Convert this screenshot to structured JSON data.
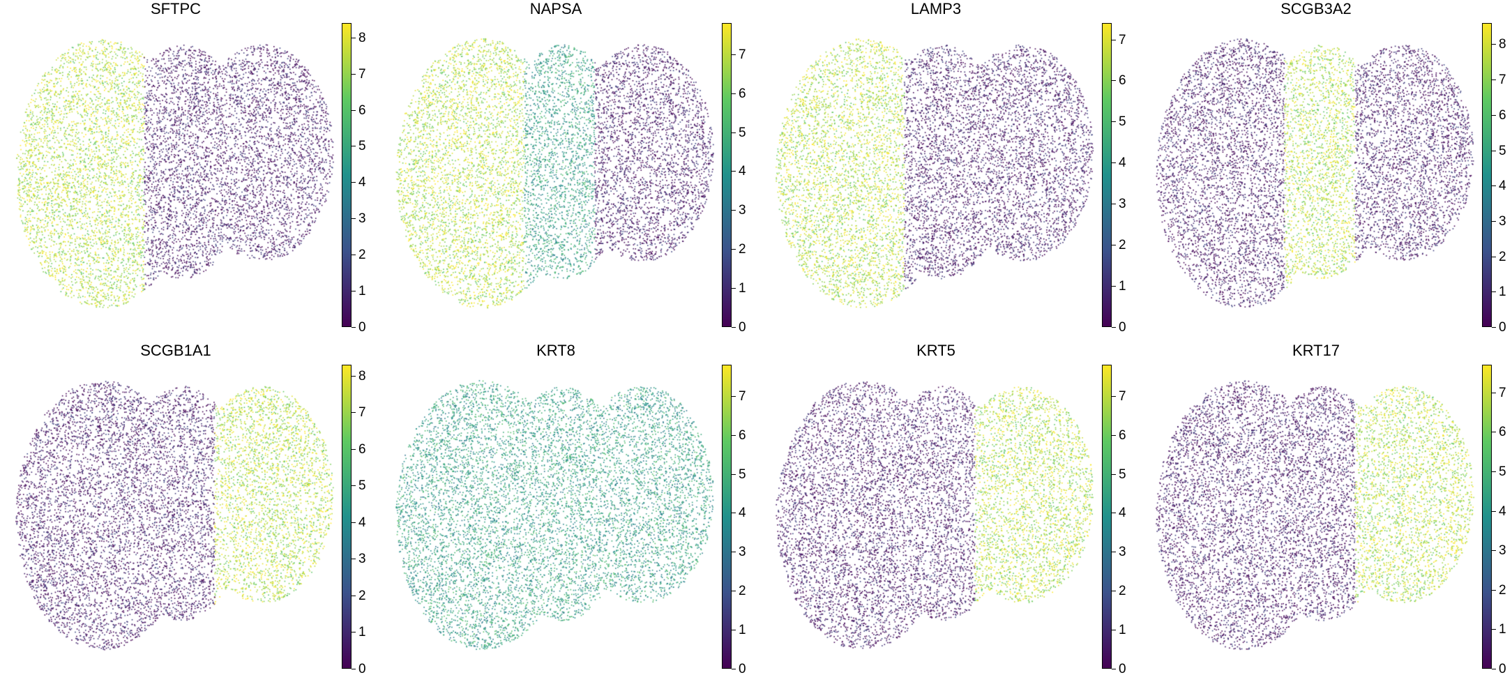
{
  "colormap": [
    "#440154",
    "#3b528b",
    "#21918c",
    "#5ec962",
    "#fde725"
  ],
  "chart_data": [
    {
      "type": "scatter",
      "title": "SFTPC",
      "xlabel": "",
      "ylabel": "",
      "colorbar": {
        "min": 0,
        "max": 8.4,
        "ticks": [
          "0",
          "1",
          "2",
          "3",
          "4",
          "5",
          "6",
          "7",
          "8"
        ]
      },
      "expression_regions": [
        "left: high",
        "middle: low",
        "right: low"
      ]
    },
    {
      "type": "scatter",
      "title": "NAPSA",
      "xlabel": "",
      "ylabel": "",
      "colorbar": {
        "min": 0,
        "max": 7.8,
        "ticks": [
          "0",
          "1",
          "2",
          "3",
          "4",
          "5",
          "6",
          "7"
        ]
      },
      "expression_regions": [
        "left: high",
        "middle: medium",
        "right: low"
      ]
    },
    {
      "type": "scatter",
      "title": "LAMP3",
      "xlabel": "",
      "ylabel": "",
      "colorbar": {
        "min": 0,
        "max": 7.4,
        "ticks": [
          "0",
          "1",
          "2",
          "3",
          "4",
          "5",
          "6",
          "7"
        ]
      },
      "expression_regions": [
        "left: high",
        "middle: low",
        "right: low"
      ]
    },
    {
      "type": "scatter",
      "title": "SCGB3A2",
      "xlabel": "",
      "ylabel": "",
      "colorbar": {
        "min": 0,
        "max": 8.6,
        "ticks": [
          "0",
          "1",
          "2",
          "3",
          "4",
          "5",
          "6",
          "7",
          "8"
        ]
      },
      "expression_regions": [
        "left: low",
        "middle: high",
        "right: low"
      ]
    },
    {
      "type": "scatter",
      "title": "SCGB1A1",
      "xlabel": "",
      "ylabel": "",
      "colorbar": {
        "min": 0,
        "max": 8.3,
        "ticks": [
          "0",
          "1",
          "2",
          "3",
          "4",
          "5",
          "6",
          "7",
          "8"
        ]
      },
      "expression_regions": [
        "left: low",
        "middle: low",
        "right: high"
      ]
    },
    {
      "type": "scatter",
      "title": "KRT8",
      "xlabel": "",
      "ylabel": "",
      "colorbar": {
        "min": 0,
        "max": 7.8,
        "ticks": [
          "0",
          "1",
          "2",
          "3",
          "4",
          "5",
          "6",
          "7"
        ]
      },
      "expression_regions": [
        "left: medium",
        "middle: medium",
        "right: medium"
      ]
    },
    {
      "type": "scatter",
      "title": "KRT5",
      "xlabel": "",
      "ylabel": "",
      "colorbar": {
        "min": 0,
        "max": 7.8,
        "ticks": [
          "0",
          "1",
          "2",
          "3",
          "4",
          "5",
          "6",
          "7"
        ]
      },
      "expression_regions": [
        "left: low",
        "middle: low",
        "right: high"
      ]
    },
    {
      "type": "scatter",
      "title": "KRT17",
      "xlabel": "",
      "ylabel": "",
      "colorbar": {
        "min": 0,
        "max": 7.7,
        "ticks": [
          "0",
          "1",
          "2",
          "3",
          "4",
          "5",
          "6",
          "7"
        ]
      },
      "expression_regions": [
        "left: low",
        "middle: low",
        "right: high"
      ]
    }
  ]
}
